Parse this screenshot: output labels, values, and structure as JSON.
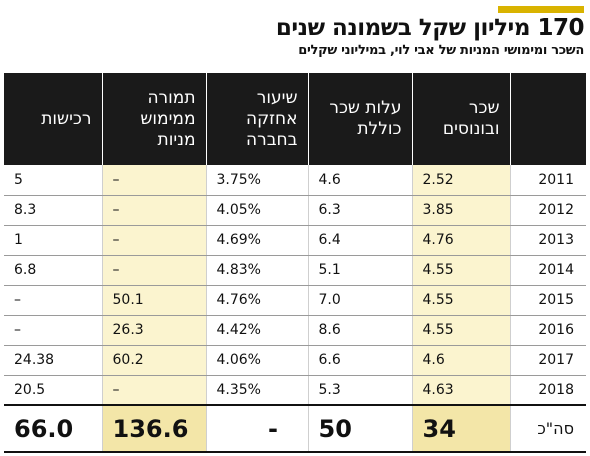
{
  "colors": {
    "accent": "#d9b300",
    "header_bg": "#1a1a1a",
    "highlight": "#fbf4cf",
    "total_highlight": "#f3e6a8"
  },
  "chart_data": {
    "type": "table",
    "title": "170 מיליון שקל בשמונה שנים",
    "subtitle": "השכר ומימושי המניות של אבי לוי, במיליוני שקלים",
    "columns": [
      {
        "key": "year",
        "label": ""
      },
      {
        "key": "salary_bonus",
        "label": "שכר\nובונוסים",
        "highlight": true
      },
      {
        "key": "total_cost",
        "label": "עלות שכר\nכוללת",
        "highlight": false
      },
      {
        "key": "holding_pct",
        "label": "שיעור\nאחזקה\nבחברה",
        "highlight": false
      },
      {
        "key": "exercise",
        "label": "תמורה\nממימוש\nמניות",
        "highlight": true
      },
      {
        "key": "acquisitions",
        "label": "רכישות",
        "highlight": false
      }
    ],
    "rows": [
      {
        "year": "2011",
        "salary_bonus": "2.52",
        "total_cost": "4.6",
        "holding_pct": "3.75%",
        "exercise": "–",
        "acquisitions": "5"
      },
      {
        "year": "2012",
        "salary_bonus": "3.85",
        "total_cost": "6.3",
        "holding_pct": "4.05%",
        "exercise": "–",
        "acquisitions": "8.3"
      },
      {
        "year": "2013",
        "salary_bonus": "4.76",
        "total_cost": "6.4",
        "holding_pct": "4.69%",
        "exercise": "–",
        "acquisitions": "1"
      },
      {
        "year": "2014",
        "salary_bonus": "4.55",
        "total_cost": "5.1",
        "holding_pct": "4.83%",
        "exercise": "–",
        "acquisitions": "6.8"
      },
      {
        "year": "2015",
        "salary_bonus": "4.55",
        "total_cost": "7.0",
        "holding_pct": "4.76%",
        "exercise": "50.1",
        "acquisitions": "–"
      },
      {
        "year": "2016",
        "salary_bonus": "4.55",
        "total_cost": "8.6",
        "holding_pct": "4.42%",
        "exercise": "26.3",
        "acquisitions": "–"
      },
      {
        "year": "2017",
        "salary_bonus": "4.6",
        "total_cost": "6.6",
        "holding_pct": "4.06%",
        "exercise": "60.2",
        "acquisitions": "24.38"
      },
      {
        "year": "2018",
        "salary_bonus": "4.63",
        "total_cost": "5.3",
        "holding_pct": "4.35%",
        "exercise": "–",
        "acquisitions": "20.5"
      }
    ],
    "total": {
      "year": "סה\"כ",
      "salary_bonus": "34",
      "total_cost": "50",
      "holding_pct": "-",
      "exercise": "136.6",
      "acquisitions": "66.0"
    }
  }
}
